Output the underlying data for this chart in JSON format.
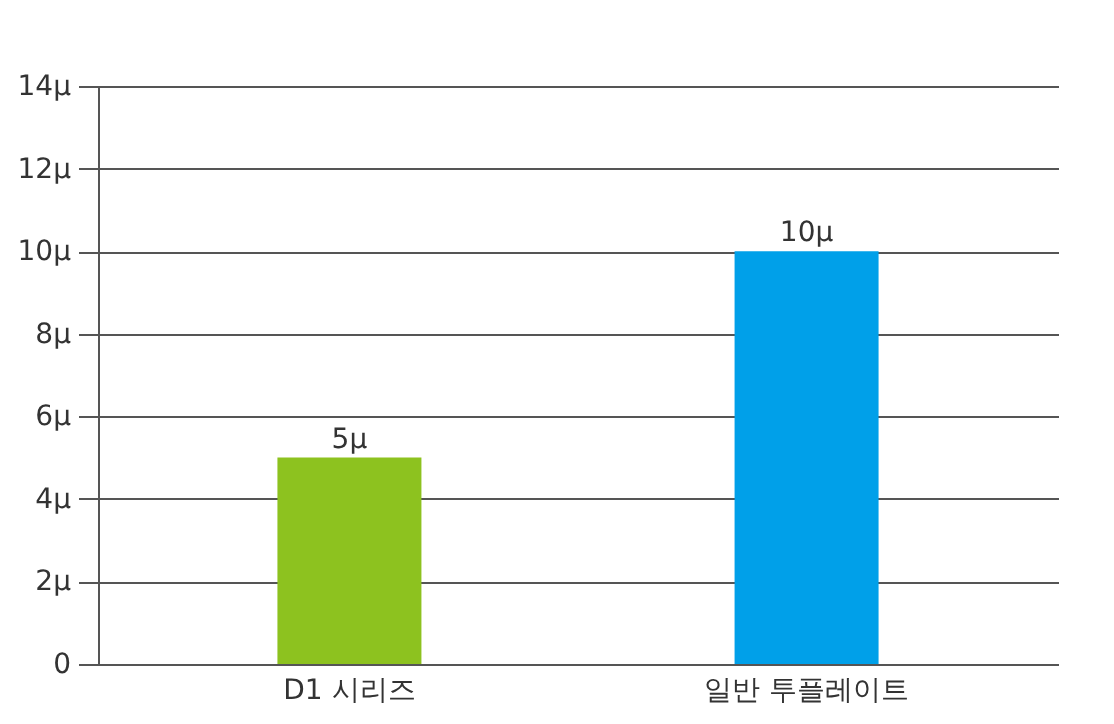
{
  "chart_data": {
    "type": "bar",
    "categories": [
      "D1 시리즈",
      "일반 투플레이트"
    ],
    "values": [
      5,
      10
    ],
    "colors": [
      "#8dc21f",
      "#00a0e9"
    ],
    "value_labels": [
      "5μ",
      "10μ"
    ],
    "ylim": [
      0,
      14
    ],
    "yticks": [
      0,
      {
        "value": 2,
        "label": "2μ"
      },
      {
        "value": 4,
        "label": "4μ"
      },
      {
        "value": 6,
        "label": "6μ"
      },
      {
        "value": 8,
        "label": "8μ"
      },
      {
        "value": 10,
        "label": "10μ"
      },
      {
        "value": 12,
        "label": "12μ"
      },
      {
        "value": 14,
        "label": "14μ"
      }
    ],
    "grid": "y"
  }
}
